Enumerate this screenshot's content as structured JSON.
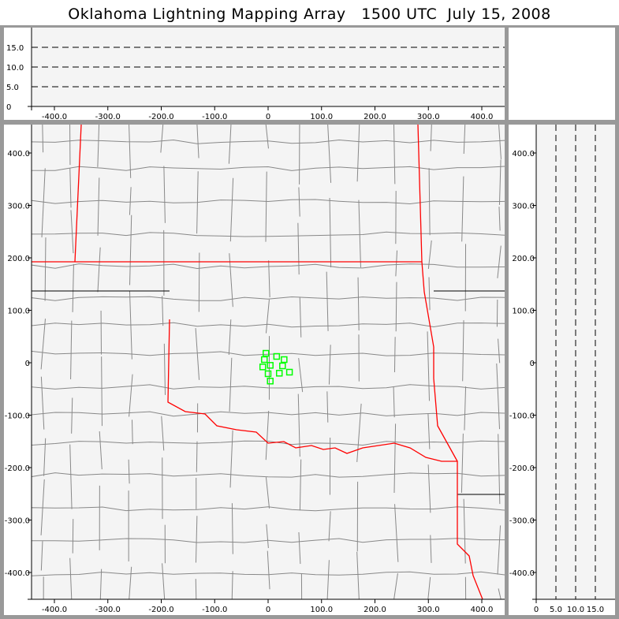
{
  "title": "Oklahoma Lightning Mapping Array   1500 UTC  July 15, 2008",
  "colors": {
    "background": "#f4f4f4",
    "frame": "#999999",
    "state_border": "#ff0000",
    "county_border": "#888888",
    "station": "#00ff00"
  },
  "plan_view": {
    "x_range": [
      -443,
      443
    ],
    "y_range": [
      -453,
      453
    ],
    "x_ticks": [
      "-400.0",
      "-300.0",
      "-200.0",
      "-100.0",
      "0",
      "100.0",
      "200.0",
      "300.0",
      "400.0"
    ],
    "y_ticks": [
      "400.0",
      "300.0",
      "200.0",
      "100.0",
      "0",
      "-100.0",
      "-200.0",
      "-300.0",
      "-400.0"
    ],
    "stations": [
      [
        -4,
        18
      ],
      [
        -7,
        6
      ],
      [
        16,
        12
      ],
      [
        30,
        6
      ],
      [
        -10,
        -8
      ],
      [
        4,
        -5
      ],
      [
        27,
        -6
      ],
      [
        0,
        -21
      ],
      [
        21,
        -20
      ],
      [
        40,
        -18
      ],
      [
        4,
        -35
      ]
    ]
  },
  "altitude_x_panel": {
    "alt_range": [
      0,
      20
    ],
    "y_ticks": [
      "15.0",
      "10.0",
      "5.0",
      "0"
    ],
    "dashed_levels": [
      5,
      10,
      15
    ]
  },
  "altitude_y_panel": {
    "alt_range": [
      0,
      20
    ],
    "x_ticks": [
      "0",
      "5.0",
      "10.0",
      "15.0"
    ],
    "dashed_levels": [
      5,
      10,
      15
    ],
    "y_ticks": [
      "400.0",
      "300.0",
      "200.0",
      "100.0",
      "0",
      "-100.0",
      "-200.0",
      "-300.0",
      "-400.0"
    ]
  }
}
